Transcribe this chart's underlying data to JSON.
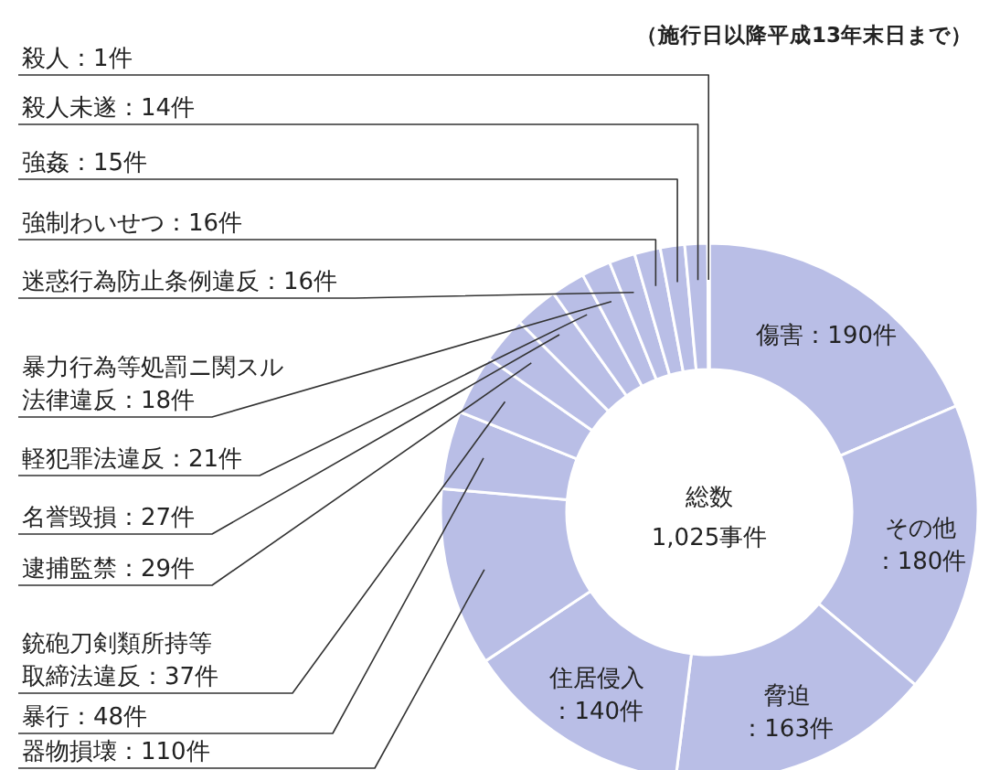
{
  "chart_data": {
    "type": "donut",
    "subtitle": "（施行日以降平成13年末日まで）",
    "annotations": [
      "総数",
      "1,025事件"
    ],
    "categories": [
      "傷害",
      "その他",
      "脅迫",
      "住居侵入",
      "器物損壊",
      "暴行",
      "銃砲刀剣類所持等取締法違反",
      "逮捕監禁",
      "名誉毀損",
      "軽犯罪法違反",
      "暴力行為等処罰ニ関スル法律違反",
      "迷惑行為防止条例違反",
      "強制わいせつ",
      "強姦",
      "殺人未遂",
      "殺人"
    ],
    "values": [
      190,
      180,
      163,
      140,
      110,
      48,
      37,
      29,
      27,
      21,
      18,
      16,
      16,
      15,
      14,
      1
    ],
    "value_labels": [
      "：190件",
      "：180件",
      "：163件",
      "：140件",
      "：110件",
      "：48件",
      "：37件",
      "：29件",
      "：27件",
      "：21件",
      "：18件",
      "：16件",
      "：16件",
      "：15件",
      "：14件",
      "：1件"
    ],
    "colors": [
      "#b9bee6",
      "#b9bee6",
      "#b9bee6",
      "#b9bee6",
      "#b9bee6",
      "#b9bee6",
      "#b9bee6",
      "#b9bee6",
      "#b9bee6",
      "#b9bee6",
      "#b9bee6",
      "#b9bee6",
      "#b9bee6",
      "#b9bee6",
      "#b9bee6",
      "#b9bee6"
    ]
  }
}
